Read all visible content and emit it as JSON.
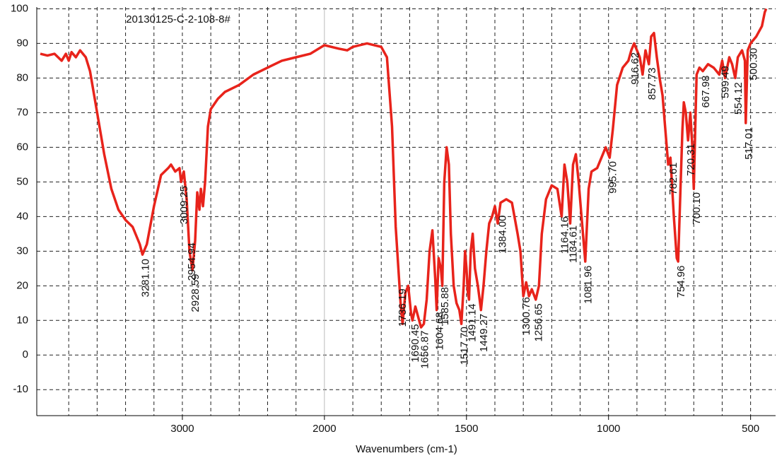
{
  "chart_data": {
    "type": "line",
    "title": "20130125-C-2-108-8#",
    "x_label": "Wavenumbers (cm-1)",
    "color": "#e8231b",
    "xlim": [
      4025,
      412
    ],
    "x_scale_break": 2000,
    "x_scale_factor": 2,
    "ylim": [
      -17.5,
      100.5
    ],
    "xticks": [
      3000,
      2000,
      1500,
      1000,
      500
    ],
    "x_grid": [
      3800,
      3600,
      3400,
      3200,
      3000,
      2800,
      2600,
      2400,
      2200,
      2000,
      1900,
      1800,
      1700,
      1600,
      1500,
      1400,
      1300,
      1200,
      1100,
      1000,
      900,
      800,
      700,
      600,
      500
    ],
    "yticks": [
      -10,
      0,
      10,
      20,
      30,
      40,
      50,
      60,
      70,
      80,
      90,
      100
    ],
    "grid": true,
    "x": [
      4000,
      3950,
      3900,
      3850,
      3820,
      3800,
      3780,
      3750,
      3720,
      3700,
      3680,
      3650,
      3600,
      3550,
      3500,
      3450,
      3400,
      3350,
      3300,
      3281,
      3250,
      3200,
      3150,
      3100,
      3080,
      3050,
      3020,
      3009,
      2990,
      2970,
      2950,
      2929,
      2910,
      2895,
      2880,
      2870,
      2855,
      2840,
      2820,
      2800,
      2750,
      2700,
      2600,
      2500,
      2400,
      2300,
      2200,
      2100,
      2000,
      1950,
      1920,
      1900,
      1850,
      1800,
      1780,
      1762,
      1749,
      1732,
      1725,
      1715,
      1705,
      1695,
      1690,
      1680,
      1670,
      1660,
      1650,
      1640,
      1630,
      1620,
      1610,
      1605,
      1598,
      1590,
      1585,
      1578,
      1570,
      1562,
      1555,
      1545,
      1535,
      1525,
      1518,
      1510,
      1505,
      1500,
      1495,
      1491,
      1485,
      1478,
      1470,
      1460,
      1449,
      1440,
      1430,
      1420,
      1410,
      1400,
      1390,
      1380,
      1360,
      1340,
      1320,
      1310,
      1300,
      1290,
      1280,
      1270,
      1256,
      1245,
      1235,
      1220,
      1200,
      1180,
      1165,
      1155,
      1145,
      1135,
      1125,
      1115,
      1105,
      1095,
      1082,
      1070,
      1060,
      1040,
      1020,
      1010,
      996,
      985,
      970,
      950,
      930,
      920,
      910,
      900,
      890,
      880,
      870,
      858,
      850,
      840,
      830,
      820,
      810,
      800,
      790,
      782,
      770,
      760,
      755,
      748,
      740,
      735,
      728,
      720,
      712,
      705,
      700,
      695,
      690,
      680,
      668,
      650,
      630,
      610,
      600,
      590,
      575,
      565,
      554,
      545,
      530,
      520,
      517,
      510,
      500,
      480,
      460,
      450,
      445
    ],
    "values": [
      87,
      86.5,
      87,
      85,
      87,
      85,
      87.5,
      86,
      88,
      87,
      86,
      82,
      70,
      58,
      48,
      42,
      39,
      37,
      32,
      29,
      32,
      43,
      52,
      54,
      55,
      53,
      54,
      50,
      53,
      45,
      30,
      24.5,
      33,
      47,
      42,
      48,
      43,
      50,
      66,
      71,
      74,
      76,
      78,
      81,
      83,
      85,
      86,
      87,
      89.5,
      88.5,
      88,
      89,
      90,
      89,
      86,
      66,
      37,
      15,
      9,
      18,
      20,
      12,
      10,
      14,
      11,
      8,
      9,
      16,
      30,
      36,
      22,
      13,
      28,
      25,
      20,
      50,
      60,
      55,
      35,
      20,
      15,
      13,
      9,
      20,
      30,
      25,
      18,
      16,
      30,
      35,
      25,
      20,
      13,
      20,
      30,
      38,
      40,
      43,
      38,
      44,
      45,
      44,
      35,
      30,
      17,
      21,
      17,
      19,
      16,
      20,
      35,
      45,
      49,
      48,
      40,
      55,
      50,
      38,
      55,
      58,
      50,
      40,
      27,
      48,
      53,
      54,
      58,
      60,
      57,
      65,
      78,
      83,
      85,
      88,
      90,
      88,
      86,
      81,
      88,
      84,
      92,
      93,
      86,
      80,
      75,
      65,
      55,
      57,
      40,
      28,
      27,
      45,
      65,
      73,
      70,
      62,
      70,
      60,
      48,
      65,
      81,
      83,
      82,
      84,
      83,
      81,
      85,
      80,
      86,
      84,
      80,
      86,
      88,
      85,
      67,
      88,
      90,
      92,
      95,
      99,
      100
    ],
    "annotations": [
      {
        "value": 3281.1,
        "label": "3281.10"
      },
      {
        "value": 3009.25,
        "label": "3009.25"
      },
      {
        "value": 2954.94,
        "label": "2954.94"
      },
      {
        "value": 2928.59,
        "label": "2928.59"
      },
      {
        "value": 1736.19,
        "label": "1736.19"
      },
      {
        "value": 1690.45,
        "label": "1690.45"
      },
      {
        "value": 1656.87,
        "label": "1656.87"
      },
      {
        "value": 1604.68,
        "label": "1604.68"
      },
      {
        "value": 1585.88,
        "label": "1585.88"
      },
      {
        "value": 1517.7,
        "label": "1517.70"
      },
      {
        "value": 1491.14,
        "label": "1491.14"
      },
      {
        "value": 1449.27,
        "label": "1449.27"
      },
      {
        "value": 1384,
        "label": "1384.00"
      },
      {
        "value": 1300.76,
        "label": "1300.76"
      },
      {
        "value": 1256.65,
        "label": "1256.65"
      },
      {
        "value": 1164.16,
        "label": "1164.16"
      },
      {
        "value": 1134.61,
        "label": "1134.61"
      },
      {
        "value": 1081.96,
        "label": "1081.96"
      },
      {
        "value": 995.7,
        "label": "995.70"
      },
      {
        "value": 916.62,
        "label": "916.62"
      },
      {
        "value": 857.73,
        "label": "857.73"
      },
      {
        "value": 782.61,
        "label": "782.61"
      },
      {
        "value": 754.96,
        "label": "754.96"
      },
      {
        "value": 720.31,
        "label": "720.31"
      },
      {
        "value": 700.1,
        "label": "700.10"
      },
      {
        "value": 667.98,
        "label": "667.98"
      },
      {
        "value": 599.49,
        "label": "599.49"
      },
      {
        "value": 554.12,
        "label": "554.12"
      },
      {
        "value": 517.01,
        "label": "517.01"
      },
      {
        "value": 500.3,
        "label": "500.30"
      }
    ]
  }
}
